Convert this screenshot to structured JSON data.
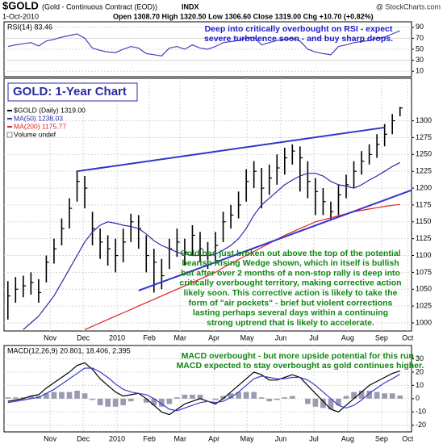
{
  "header": {
    "symbol": "$GOLD",
    "name": "(Gold - Continuous Contract (EOD))",
    "exchange": "INDX",
    "source": "@ StockCharts.com",
    "date": "1-Oct-2010",
    "quote": "Open 1308.70  High 1320.50  Low 1306.60  Close 1319.00  Chg +10.70 (+0.82%)"
  },
  "chart_data": [
    {
      "type": "line",
      "title": "RSI(14) 83.46",
      "annotation": [
        "Deep into critically overbought on RSI - expect",
        "severe turbulence soon - and buy sharp drops."
      ],
      "xlim": [
        -0.5,
        52.5
      ],
      "ylim": [
        0,
        100
      ],
      "yticks": [
        10,
        30,
        50,
        70,
        90
      ],
      "grid": true,
      "x": [
        0,
        1,
        2,
        3,
        4,
        5,
        6,
        7,
        8,
        9,
        10,
        11,
        12,
        13,
        14,
        15,
        16,
        17,
        18,
        19,
        20,
        21,
        22,
        23,
        24,
        25,
        26,
        27,
        28,
        29,
        30,
        31,
        32,
        33,
        34,
        35,
        36,
        37,
        38,
        39,
        40,
        41,
        42,
        43,
        44,
        45,
        46,
        47,
        48,
        49,
        50,
        51
      ],
      "series": [
        {
          "name": "RSI(14)",
          "color": "#4444bb",
          "values": [
            55,
            58,
            60,
            62,
            56,
            65,
            68,
            72,
            75,
            78,
            70,
            52,
            48,
            45,
            44,
            50,
            55,
            52,
            42,
            40,
            38,
            52,
            55,
            50,
            58,
            52,
            50,
            55,
            62,
            64,
            66,
            70,
            72,
            58,
            62,
            66,
            68,
            70,
            65,
            50,
            45,
            42,
            40,
            55,
            58,
            62,
            64,
            66,
            70,
            72,
            78,
            83.46
          ]
        }
      ]
    },
    {
      "type": "ohlc",
      "title": "GOLD: 1-Year Chart",
      "annotation": [
        "Gold has just broken out above the top of the potential",
        "bearish Rising Wedge shown, which in itself is bullish",
        "but after over 2 months of a non-stop rally is deep into",
        "critically overbought territory, making corrective action",
        "likely soon. This corrective action is likely to take the",
        "form of \"air pockets\" - brief but violent corrections",
        "lasting perhaps several days within a continuing",
        "strong uptrend that is likely to accelerate."
      ],
      "volume_label": "Volume undef",
      "xlim": [
        -0.5,
        52.5
      ],
      "ylim": [
        988,
        1363
      ],
      "yticks": [
        1000,
        1025,
        1050,
        1075,
        1100,
        1125,
        1150,
        1175,
        1200,
        1225,
        1250,
        1275,
        1300
      ],
      "grid": true,
      "xticks": [
        {
          "value": 5.5,
          "label": "Nov"
        },
        {
          "value": 9.8,
          "label": "Dec"
        },
        {
          "value": 14.2,
          "label": "2010"
        },
        {
          "value": 18.4,
          "label": "Feb"
        },
        {
          "value": 22.4,
          "label": "Mar"
        },
        {
          "value": 26.8,
          "label": "Apr"
        },
        {
          "value": 31.1,
          "label": "May"
        },
        {
          "value": 35.5,
          "label": "Jun"
        },
        {
          "value": 39.8,
          "label": "Jul"
        },
        {
          "value": 44.2,
          "label": "Aug"
        },
        {
          "value": 48.6,
          "label": "Sep"
        },
        {
          "value": 52,
          "label": "Oct"
        }
      ],
      "x": [
        0,
        1,
        2,
        3,
        4,
        5,
        6,
        7,
        8,
        9,
        10,
        11,
        12,
        13,
        14,
        15,
        16,
        17,
        18,
        19,
        20,
        21,
        22,
        23,
        24,
        25,
        26,
        27,
        28,
        29,
        30,
        31,
        32,
        33,
        34,
        35,
        36,
        37,
        38,
        39,
        40,
        41,
        42,
        43,
        44,
        45,
        46,
        47,
        48,
        49,
        50,
        51
      ],
      "series": [
        {
          "name": "$GOLD (Daily) 1319.00",
          "color": "#000000",
          "high": [
            1062,
            1068,
            1070,
            1075,
            1065,
            1100,
            1125,
            1155,
            1185,
            1226,
            1218,
            1165,
            1140,
            1130,
            1125,
            1140,
            1162,
            1160,
            1130,
            1110,
            1095,
            1125,
            1140,
            1125,
            1145,
            1135,
            1120,
            1135,
            1165,
            1175,
            1195,
            1228,
            1240,
            1230,
            1235,
            1250,
            1260,
            1265,
            1262,
            1240,
            1215,
            1200,
            1180,
            1205,
            1220,
            1240,
            1255,
            1265,
            1280,
            1295,
            1310,
            1320.5
          ],
          "low": [
            1005,
            1030,
            1038,
            1042,
            1030,
            1060,
            1088,
            1115,
            1140,
            1180,
            1170,
            1115,
            1095,
            1085,
            1075,
            1090,
            1120,
            1110,
            1075,
            1045,
            1050,
            1080,
            1098,
            1085,
            1100,
            1090,
            1080,
            1090,
            1120,
            1140,
            1155,
            1180,
            1200,
            1170,
            1190,
            1205,
            1220,
            1235,
            1195,
            1185,
            1160,
            1160,
            1152,
            1160,
            1185,
            1200,
            1220,
            1235,
            1245,
            1262,
            1280,
            1306.6
          ],
          "close": [
            1040,
            1050,
            1055,
            1060,
            1045,
            1090,
            1110,
            1140,
            1170,
            1210,
            1200,
            1140,
            1120,
            1110,
            1100,
            1120,
            1150,
            1140,
            1100,
            1090,
            1070,
            1110,
            1120,
            1105,
            1130,
            1110,
            1100,
            1115,
            1150,
            1160,
            1175,
            1210,
            1225,
            1200,
            1215,
            1230,
            1245,
            1255,
            1245,
            1210,
            1195,
            1180,
            1165,
            1190,
            1205,
            1225,
            1240,
            1250,
            1265,
            1280,
            1300,
            1319
          ]
        },
        {
          "name": "MA(50) 1238.03",
          "color": "#2a2aa8",
          "values": [
            null,
            null,
            990,
            1000,
            1010,
            1025,
            1040,
            1060,
            1080,
            1100,
            1120,
            1135,
            1145,
            1150,
            1148,
            1145,
            1143,
            1140,
            1132,
            1122,
            1115,
            1110,
            1105,
            1102,
            1100,
            1100,
            1100,
            1102,
            1108,
            1115,
            1125,
            1140,
            1160,
            1175,
            1185,
            1195,
            1205,
            1212,
            1218,
            1222,
            1222,
            1218,
            1210,
            1205,
            1203,
            1200,
            1205,
            1212,
            1218,
            1225,
            1232,
            1238.03
          ]
        },
        {
          "name": "MA(200) 1175.77",
          "color": "#e02020",
          "values": [
            null,
            null,
            null,
            null,
            null,
            null,
            null,
            null,
            null,
            null,
            990,
            995,
            1000,
            1005,
            1010,
            1015,
            1020,
            1025,
            1030,
            1035,
            1040,
            1045,
            1050,
            1055,
            1060,
            1065,
            1070,
            1075,
            1082,
            1088,
            1094,
            1100,
            1106,
            1112,
            1118,
            1124,
            1130,
            1135,
            1140,
            1145,
            1150,
            1153,
            1156,
            1159,
            1162,
            1165,
            1167,
            1169,
            1171,
            1173,
            1174.5,
            1175.77
          ]
        }
      ],
      "trendlines": [
        {
          "color": "#3333cc",
          "points": [
            [
              9,
              1225
            ],
            [
              49,
              1290
            ]
          ]
        },
        {
          "color": "#3333cc",
          "points": [
            [
              17,
              1048
            ],
            [
              52.5,
              1197
            ]
          ]
        }
      ]
    },
    {
      "type": "line",
      "title": "MACD(12,26,9) 20.801, 18.406, 2.395",
      "annotation": [
        "MACD overbought - but more upside potential for this run -",
        "MACD expected to stay overbought as gold continues higher."
      ],
      "xlim": [
        -0.5,
        52.5
      ],
      "ylim": [
        -25,
        40
      ],
      "yticks": [
        -20,
        -10,
        0,
        10,
        20,
        30
      ],
      "grid": true,
      "xticks": [
        {
          "value": 5.5,
          "label": "Nov"
        },
        {
          "value": 9.8,
          "label": "Dec"
        },
        {
          "value": 14.2,
          "label": "2010"
        },
        {
          "value": 18.4,
          "label": "Feb"
        },
        {
          "value": 22.4,
          "label": "Mar"
        },
        {
          "value": 26.8,
          "label": "Apr"
        },
        {
          "value": 31.1,
          "label": "May"
        },
        {
          "value": 35.5,
          "label": "Jun"
        },
        {
          "value": 39.8,
          "label": "Jul"
        },
        {
          "value": 44.2,
          "label": "Aug"
        },
        {
          "value": 48.6,
          "label": "Sep"
        },
        {
          "value": 52,
          "label": "Oct"
        }
      ],
      "x": [
        0,
        1,
        2,
        3,
        4,
        5,
        6,
        7,
        8,
        9,
        10,
        11,
        12,
        13,
        14,
        15,
        16,
        17,
        18,
        19,
        20,
        21,
        22,
        23,
        24,
        25,
        26,
        27,
        28,
        29,
        30,
        31,
        32,
        33,
        34,
        35,
        36,
        37,
        38,
        39,
        40,
        41,
        42,
        43,
        44,
        45,
        46,
        47,
        48,
        49,
        50,
        51
      ],
      "series": [
        {
          "name": "Histogram",
          "type": "bar",
          "color": "#9a9ab0",
          "values": [
            1,
            1,
            1,
            2,
            2,
            4,
            5,
            5,
            5,
            6,
            4,
            -1,
            -5,
            -6,
            -6,
            -5,
            -2,
            0,
            -3,
            -5,
            -6,
            -4,
            1,
            3,
            3,
            3,
            0,
            -1,
            2,
            4,
            5,
            5,
            5,
            1,
            -2,
            -1,
            1,
            2,
            0,
            -4,
            -6,
            -7,
            -8,
            -5,
            2,
            5,
            6,
            6,
            5,
            4,
            4,
            2.395
          ]
        },
        {
          "name": "MACD",
          "color": "#000000",
          "values": [
            -2,
            -1,
            0,
            2,
            3,
            8,
            12,
            16,
            20,
            25,
            27,
            22,
            15,
            10,
            5,
            2,
            3,
            4,
            0,
            -5,
            -10,
            -12,
            -8,
            -4,
            -2,
            0,
            -2,
            -4,
            0,
            5,
            10,
            15,
            20,
            18,
            14,
            14,
            16,
            18,
            16,
            10,
            4,
            -2,
            -8,
            -10,
            -5,
            0,
            5,
            10,
            13,
            16,
            19,
            20.801
          ]
        },
        {
          "name": "Signal",
          "color": "#3a3acc",
          "values": [
            -3,
            -2,
            -1,
            0,
            1,
            4,
            7,
            11,
            15,
            19,
            23,
            23,
            20,
            16,
            11,
            7,
            5,
            4,
            3,
            0,
            -4,
            -8,
            -9,
            -7,
            -5,
            -3,
            -2,
            -3,
            -2,
            1,
            5,
            10,
            15,
            17,
            16,
            15,
            15,
            16,
            16,
            14,
            10,
            5,
            0,
            -5,
            -7,
            -5,
            -1,
            4,
            8,
            12,
            15,
            18.406
          ]
        }
      ]
    }
  ]
}
